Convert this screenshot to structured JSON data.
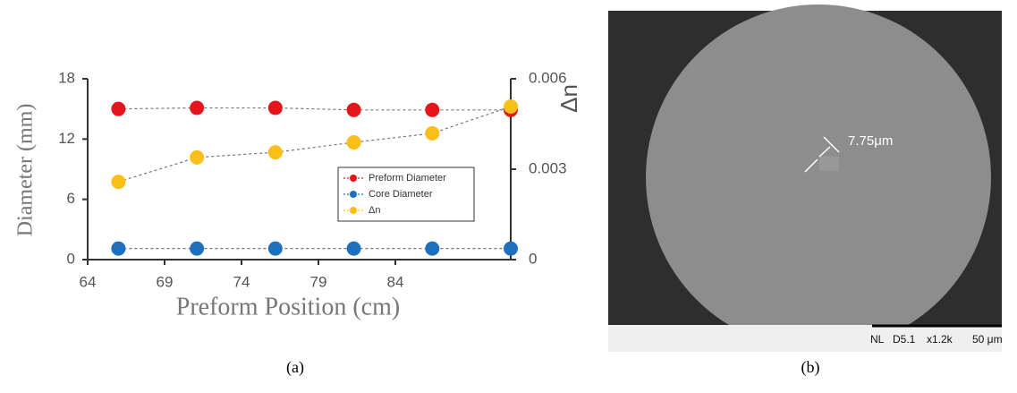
{
  "chart_data": {
    "type": "line",
    "x_label": "Preform Position (cm)",
    "y_label": "Diameter (mm)",
    "y2_label": "Δn",
    "x": [
      66,
      71.1,
      76.2,
      81.3,
      86.4,
      91.5
    ],
    "xlim": [
      64,
      91.5
    ],
    "xticks": [
      64,
      69,
      74,
      79,
      84
    ],
    "ylim": [
      0,
      18
    ],
    "yticks": [
      0,
      6,
      12,
      18
    ],
    "y2lim": [
      0,
      0.006
    ],
    "y2ticks": [
      0,
      0.003,
      0.006
    ],
    "legend": "right",
    "series": [
      {
        "name": "Preform Diameter",
        "color": "#e8141b",
        "values": [
          15.0,
          15.1,
          15.1,
          14.9,
          14.9,
          14.9
        ]
      },
      {
        "name": "Core Diameter",
        "color": "#1f6fbf",
        "values": [
          1.1,
          1.1,
          1.1,
          1.1,
          1.1,
          1.1
        ]
      },
      {
        "name": "Δn",
        "color": "#fbbf1a",
        "axis": "y2",
        "values": [
          0.00258,
          0.00339,
          0.00356,
          0.00389,
          0.00419,
          0.00508
        ]
      }
    ]
  },
  "panel_b": {
    "annotation": "7.75μm",
    "info": [
      "NL",
      "D5.1",
      "x1.2k",
      "50 μm"
    ]
  },
  "captions": [
    "(a)",
    "(b)"
  ]
}
